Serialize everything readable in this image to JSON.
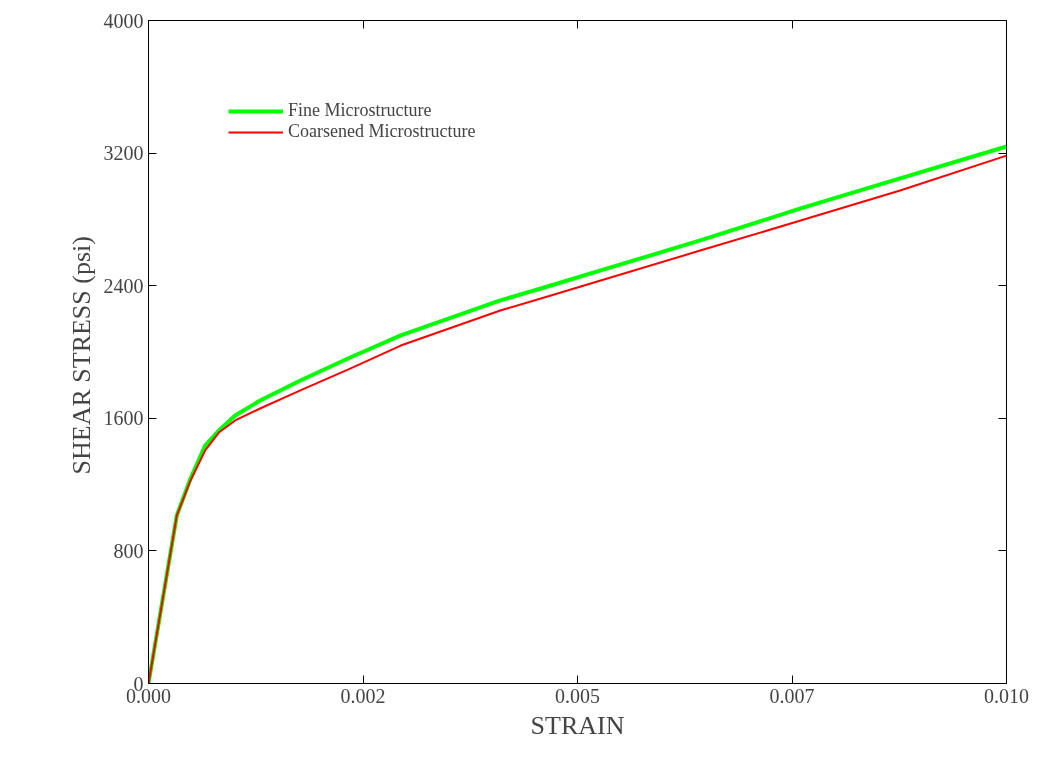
{
  "chart_data": {
    "type": "line",
    "xlabel": "STRAIN",
    "ylabel": "SHEAR STRESS  (psi)",
    "xlim": [
      0,
      0.01
    ],
    "ylim": [
      0,
      4000
    ],
    "xticks": [
      {
        "value": 0,
        "label": "0.000"
      },
      {
        "value": 0.0025,
        "label": "0.002"
      },
      0.005,
      {
        "value": 0.0075,
        "label": "0.007"
      },
      {
        "value": 0.01,
        "label": "0.010"
      }
    ],
    "yticks": [
      0,
      800,
      1600,
      2400,
      3200,
      4000
    ],
    "grid": false,
    "legend": "top left",
    "marker": "none",
    "line_style": "solid",
    "series": [
      {
        "name": "Fine Microstructure",
        "color": "#00ff00",
        "x": [
          0,
          0.00033,
          0.00049,
          0.00066,
          0.00082,
          0.00101,
          0.0013,
          0.00177,
          0.00235,
          0.00294,
          0.0041,
          0.00469,
          0.00527,
          0.00643,
          0.0076,
          0.00876,
          0.01
        ],
        "values": [
          0,
          1014,
          1237,
          1436,
          1526,
          1617,
          1707,
          1828,
          1967,
          2100,
          2311,
          2401,
          2492,
          2673,
          2866,
          3047,
          3240
        ]
      },
      {
        "name": "Coarsened Microstructure",
        "color": "#ff0000",
        "x": [
          0,
          0.00033,
          0.00049,
          0.00066,
          0.00082,
          0.00101,
          0.0013,
          0.00177,
          0.00235,
          0.00294,
          0.0041,
          0.00469,
          0.00527,
          0.00643,
          0.0076,
          0.00876,
          0.01
        ],
        "values": [
          0,
          1014,
          1225,
          1406,
          1514,
          1587,
          1659,
          1768,
          1900,
          2039,
          2250,
          2341,
          2431,
          2612,
          2793,
          2974,
          3185
        ]
      }
    ]
  }
}
